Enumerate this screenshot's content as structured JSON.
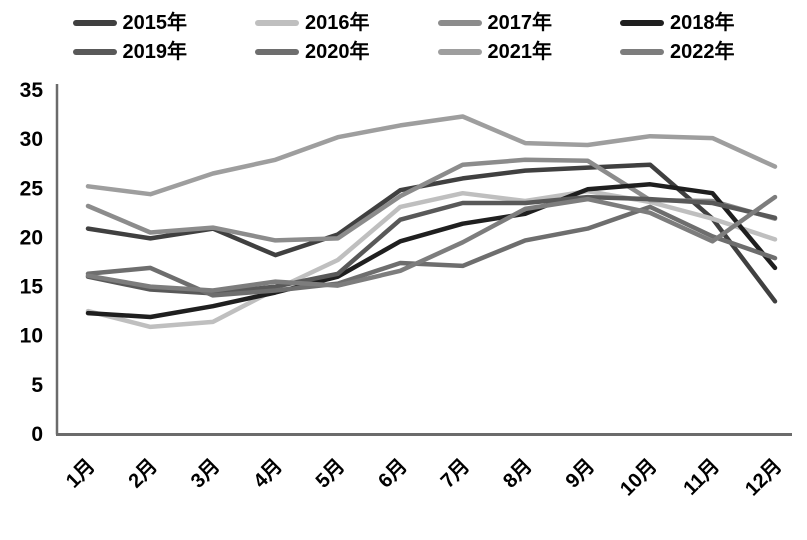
{
  "chart_data": {
    "type": "line",
    "title": "",
    "xlabel": "",
    "ylabel": "",
    "categories": [
      "1月",
      "2月",
      "3月",
      "4月",
      "5月",
      "6月",
      "7月",
      "8月",
      "9月",
      "10月",
      "11月",
      "12月"
    ],
    "ylim": [
      0,
      35
    ],
    "yticks": [
      0,
      5,
      10,
      15,
      20,
      25,
      30,
      35
    ],
    "grid": false,
    "legend_position": "top",
    "axis_color": "#6b6b6b",
    "series": [
      {
        "name": "2015年",
        "color": "#404040",
        "values": [
          20.8,
          19.8,
          20.8,
          18.1,
          20.2,
          24.7,
          25.9,
          26.7,
          27.0,
          27.3,
          21.8,
          13.4
        ]
      },
      {
        "name": "2016年",
        "color": "#bfbfbf",
        "values": [
          12.4,
          10.8,
          11.3,
          14.6,
          17.6,
          23.0,
          24.4,
          23.6,
          24.6,
          23.5,
          21.8,
          19.7
        ]
      },
      {
        "name": "2017年",
        "color": "#8c8c8c",
        "values": [
          23.1,
          20.4,
          20.9,
          19.6,
          19.8,
          24.1,
          27.3,
          27.8,
          27.7,
          23.7,
          23.6,
          21.8
        ]
      },
      {
        "name": "2018年",
        "color": "#1f1f1f",
        "values": [
          12.2,
          11.8,
          12.9,
          14.3,
          15.9,
          19.5,
          21.3,
          22.3,
          24.8,
          25.3,
          24.4,
          16.8
        ]
      },
      {
        "name": "2019年",
        "color": "#595959",
        "values": [
          15.9,
          14.6,
          14.2,
          14.9,
          16.2,
          21.7,
          23.4,
          23.4,
          24.0,
          23.8,
          23.4,
          21.9
        ]
      },
      {
        "name": "2020年",
        "color": "#6e6e6e",
        "values": [
          16.2,
          16.8,
          14.0,
          14.5,
          15.2,
          17.3,
          17.0,
          19.6,
          20.8,
          23.0,
          20.0,
          17.8
        ]
      },
      {
        "name": "2021年",
        "color": "#9e9e9e",
        "values": [
          25.1,
          24.3,
          26.4,
          27.8,
          30.1,
          31.3,
          32.2,
          29.5,
          29.3,
          30.2,
          30.0,
          27.1
        ]
      },
      {
        "name": "2022年",
        "color": "#7d7d7d",
        "values": [
          16.0,
          14.9,
          14.5,
          15.4,
          15.0,
          16.5,
          19.4,
          22.8,
          23.8,
          22.4,
          19.5,
          24.0
        ]
      }
    ],
    "legend_rows": [
      [
        "2015年",
        "2016年",
        "2017年",
        "2018年"
      ],
      [
        "2019年",
        "2020年",
        "2021年",
        "2022年"
      ]
    ]
  }
}
